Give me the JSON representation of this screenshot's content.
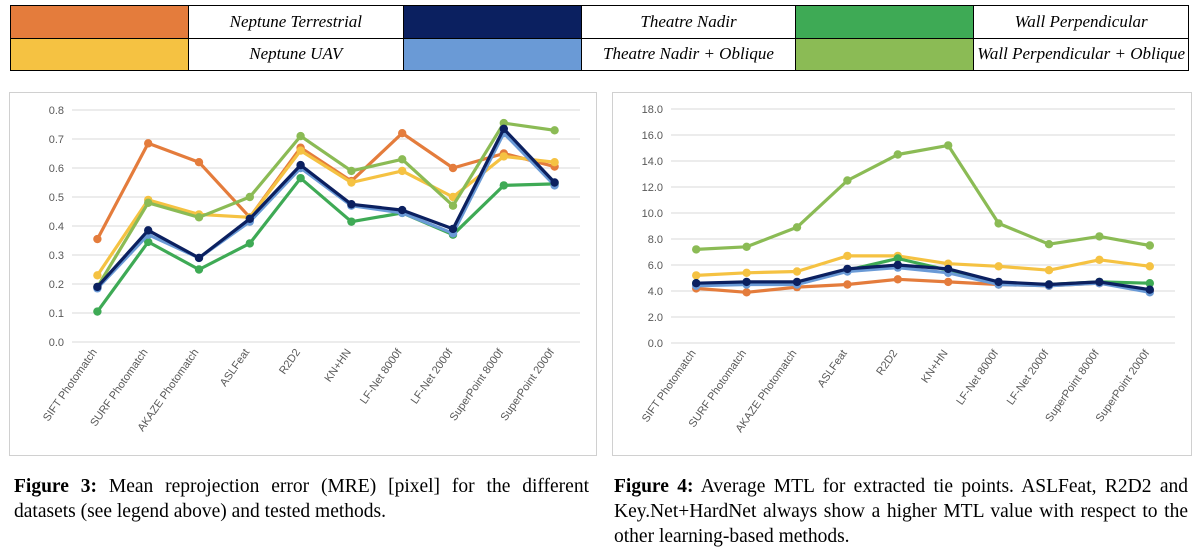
{
  "legend": [
    {
      "label": "Neptune Terrestrial",
      "color": "#E47C3C"
    },
    {
      "label": "Theatre Nadir",
      "color": "#0B2060"
    },
    {
      "label": "Wall Perpendicular",
      "color": "#3EAA55"
    },
    {
      "label": "Neptune UAV",
      "color": "#F5C242"
    },
    {
      "label": "Theatre Nadir + Oblique",
      "color": "#6A9AD6"
    },
    {
      "label": "Wall Perpendicular + Oblique",
      "color": "#8BBB55"
    }
  ],
  "captions": {
    "left": {
      "label": "Figure 3:",
      "text": " Mean reprojection error (MRE) [pixel] for the different datasets (see legend above) and tested methods."
    },
    "right": {
      "label": "Figure 4:",
      "text": " Average MTL for extracted tie points. ASLFeat, R2D2 and Key.Net+HardNet always show a higher MTL value with respect to the other learning-based methods."
    }
  },
  "chart_data": [
    {
      "type": "line",
      "categories": [
        "SIFT Photomatch",
        "SURF Photomatch",
        "AKAZE Photomatch",
        "ASLFeat",
        "R2D2",
        "KN+HN",
        "LF-Net 8000f",
        "LF-Net 2000f",
        "SuperPoint 8000f",
        "SuperPoint 2000f"
      ],
      "ylim": [
        0,
        0.8
      ],
      "yticks": [
        "0.0",
        "0.1",
        "0.2",
        "0.3",
        "0.4",
        "0.5",
        "0.6",
        "0.7",
        "0.8"
      ],
      "grid": true,
      "series": [
        {
          "name": "Neptune Terrestrial",
          "color": "#E47C3C",
          "values": [
            0.355,
            0.685,
            0.62,
            0.43,
            0.67,
            0.555,
            0.72,
            0.6,
            0.65,
            0.605
          ]
        },
        {
          "name": "Neptune UAV",
          "color": "#F5C242",
          "values": [
            0.23,
            0.49,
            0.44,
            0.43,
            0.66,
            0.55,
            0.59,
            0.5,
            0.64,
            0.62
          ]
        },
        {
          "name": "Wall Perpendicular + Oblique",
          "color": "#8BBB55",
          "values": [
            0.19,
            0.48,
            0.43,
            0.5,
            0.71,
            0.59,
            0.63,
            0.47,
            0.755,
            0.73
          ]
        },
        {
          "name": "Wall Perpendicular",
          "color": "#3EAA55",
          "values": [
            0.105,
            0.345,
            0.25,
            0.34,
            0.565,
            0.415,
            0.445,
            0.37,
            0.54,
            0.545
          ]
        },
        {
          "name": "Theatre Nadir + Oblique",
          "color": "#6A9AD6",
          "values": [
            0.185,
            0.37,
            0.29,
            0.415,
            0.6,
            0.47,
            0.445,
            0.375,
            0.72,
            0.54
          ]
        },
        {
          "name": "Theatre Nadir",
          "color": "#0B2060",
          "values": [
            0.19,
            0.385,
            0.29,
            0.425,
            0.61,
            0.475,
            0.455,
            0.39,
            0.735,
            0.55
          ]
        }
      ]
    },
    {
      "type": "line",
      "categories": [
        "SIFT Photomatch",
        "SURF Photomatch",
        "AKAZE Photomatch",
        "ASLFeat",
        "R2D2",
        "KN+HN",
        "LF-Net 8000f",
        "LF-Net 2000f",
        "SuperPoint 8000f",
        "SuperPoint 2000f"
      ],
      "ylim": [
        0,
        18
      ],
      "yticks": [
        "0.0",
        "2.0",
        "4.0",
        "6.0",
        "8.0",
        "10.0",
        "12.0",
        "14.0",
        "16.0",
        "18.0"
      ],
      "grid": true,
      "series": [
        {
          "name": "Wall Perpendicular + Oblique",
          "color": "#8BBB55",
          "values": [
            7.2,
            7.4,
            8.9,
            12.5,
            14.5,
            15.2,
            9.2,
            7.6,
            8.2,
            7.5
          ]
        },
        {
          "name": "Neptune UAV",
          "color": "#F5C242",
          "values": [
            5.2,
            5.4,
            5.5,
            6.7,
            6.7,
            6.1,
            5.9,
            5.6,
            6.4,
            5.9
          ]
        },
        {
          "name": "Wall Perpendicular",
          "color": "#3EAA55",
          "values": [
            4.6,
            4.6,
            4.5,
            5.6,
            6.5,
            5.6,
            4.6,
            4.5,
            4.7,
            4.6
          ]
        },
        {
          "name": "Neptune Terrestrial",
          "color": "#E47C3C",
          "values": [
            4.2,
            3.9,
            4.3,
            4.5,
            4.9,
            4.7,
            4.5,
            4.4,
            4.6,
            4.0
          ]
        },
        {
          "name": "Theatre Nadir + Oblique",
          "color": "#6A9AD6",
          "values": [
            4.4,
            4.5,
            4.5,
            5.5,
            5.8,
            5.4,
            4.5,
            4.4,
            4.6,
            3.9
          ]
        },
        {
          "name": "Theatre Nadir",
          "color": "#0B2060",
          "values": [
            4.6,
            4.7,
            4.7,
            5.7,
            6.0,
            5.7,
            4.7,
            4.5,
            4.7,
            4.1
          ]
        }
      ]
    }
  ]
}
